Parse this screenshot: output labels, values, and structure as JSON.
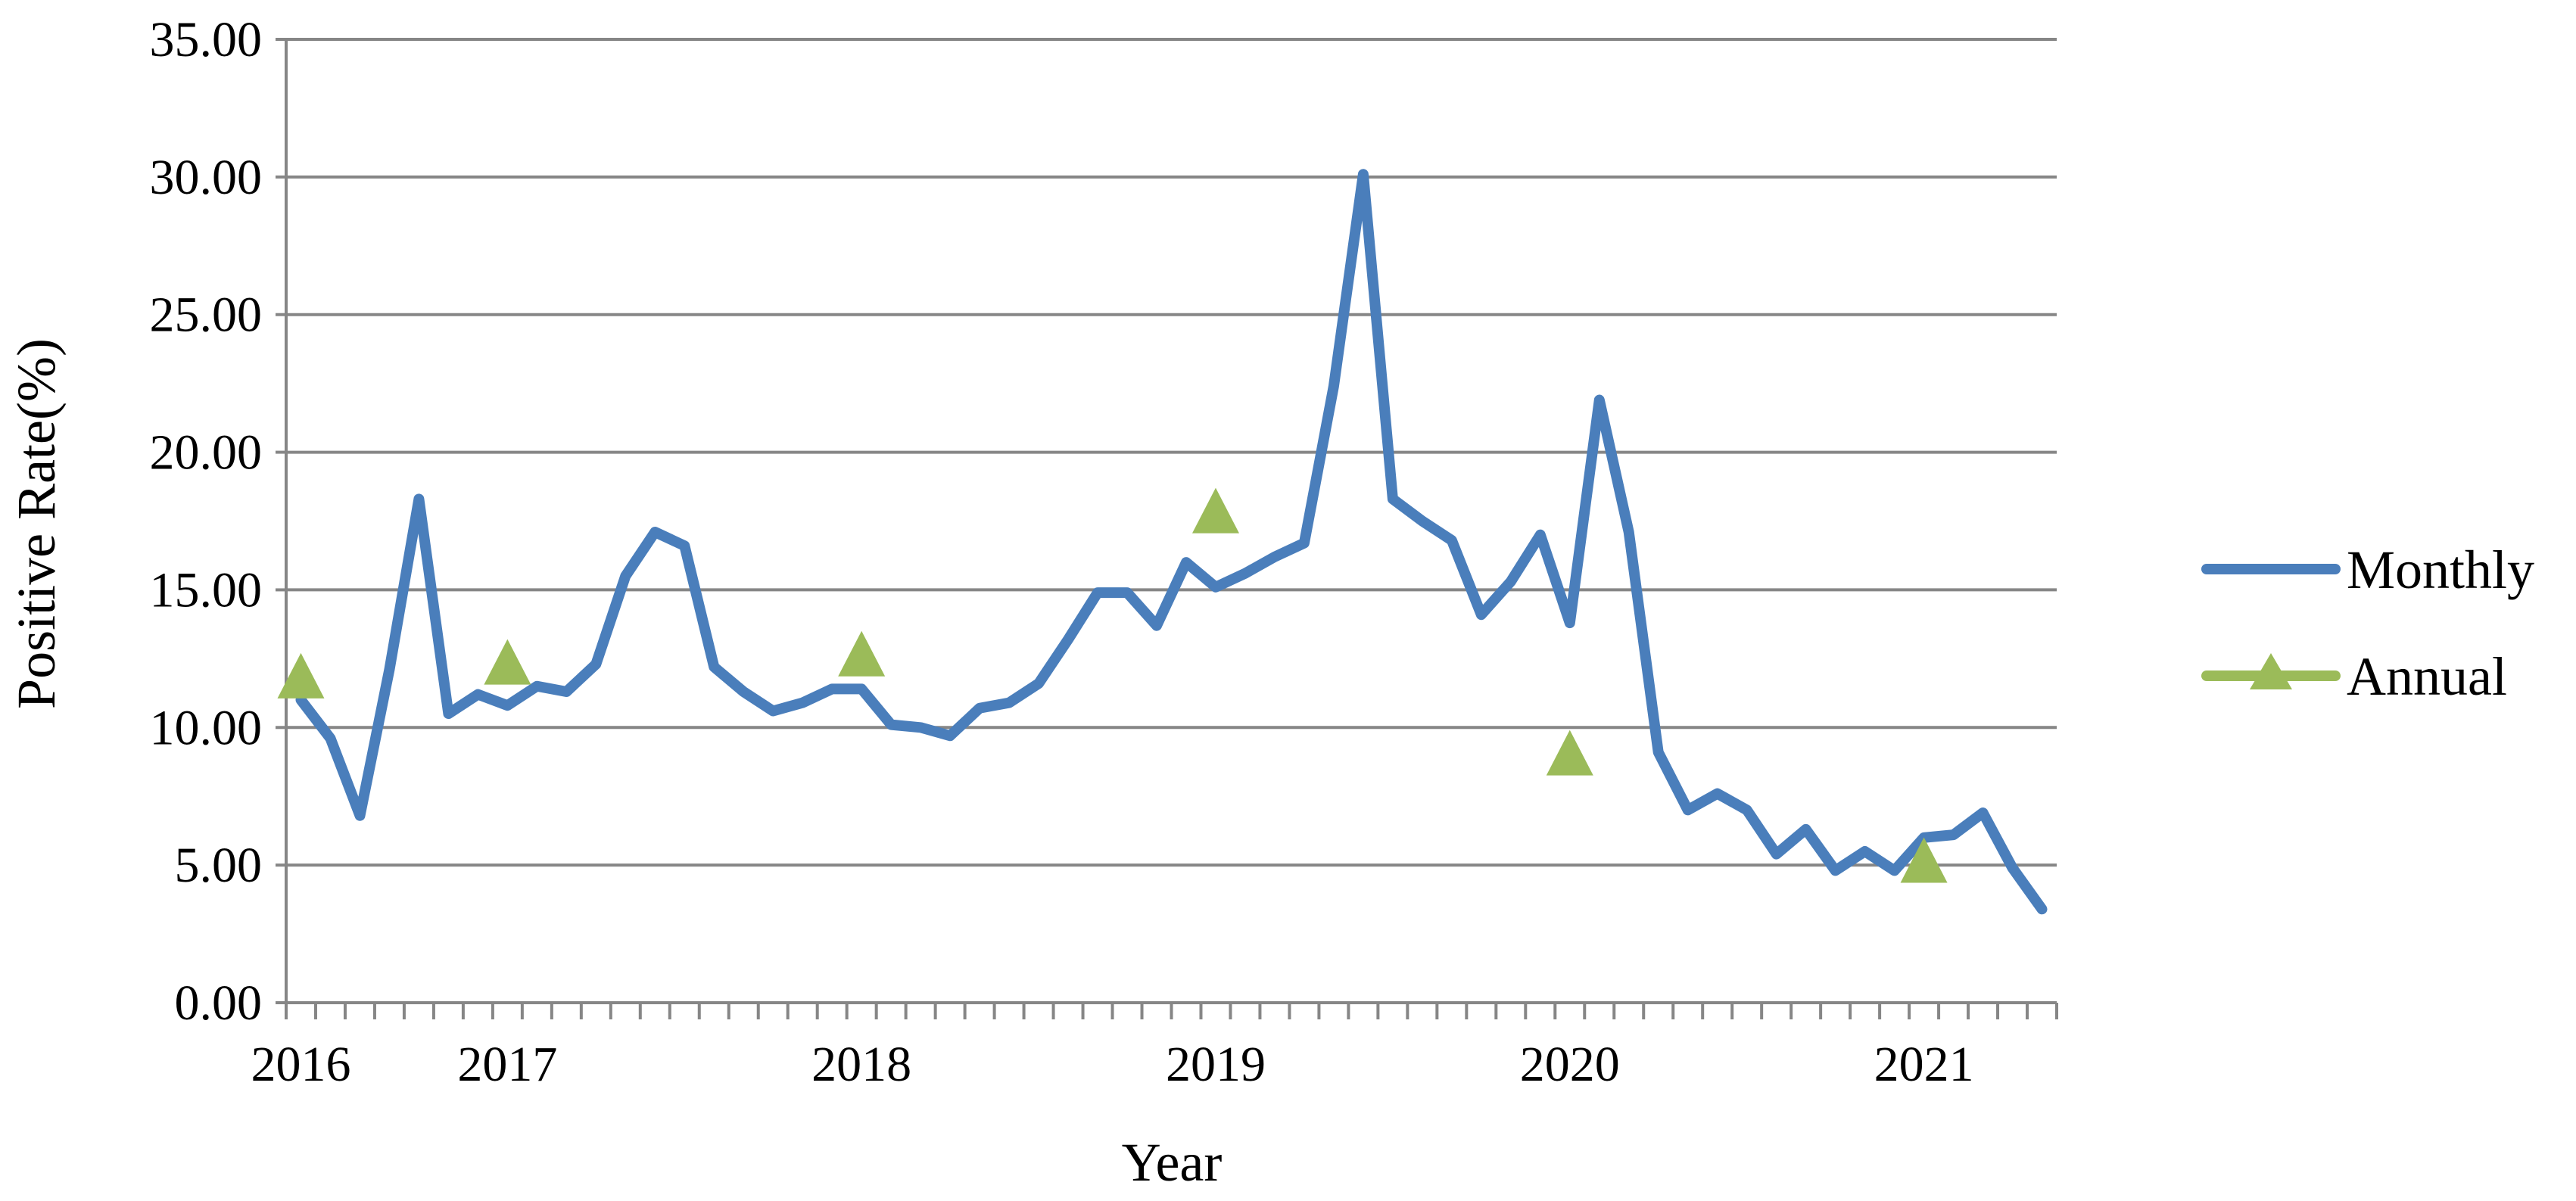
{
  "chart_data": {
    "type": "line",
    "xlabel": "Year",
    "ylabel": "Positive Rate(%)",
    "ylim": [
      0,
      35
    ],
    "y_ticks": [
      "0.00",
      "5.00",
      "10.00",
      "15.00",
      "20.00",
      "25.00",
      "30.00",
      "35.00"
    ],
    "x_tick_labels": [
      {
        "label": "2016",
        "month_index": 0
      },
      {
        "label": "2017",
        "month_index": 7
      },
      {
        "label": "2018",
        "month_index": 19
      },
      {
        "label": "2019",
        "month_index": 31
      },
      {
        "label": "2020",
        "month_index": 43
      },
      {
        "label": "2021",
        "month_index": 55
      }
    ],
    "grid": "horizontal",
    "legend_position": "right",
    "colors": {
      "monthly": "#4a7ebb",
      "annual": "#9bbb59",
      "grid": "#868686",
      "axis": "#868686"
    },
    "series": [
      {
        "name": "Monthly",
        "marker": "none",
        "values": [
          11.0,
          9.6,
          6.8,
          12.1,
          18.3,
          10.5,
          11.2,
          10.8,
          11.5,
          11.3,
          12.3,
          15.5,
          17.1,
          16.6,
          12.2,
          11.3,
          10.6,
          10.9,
          11.4,
          11.4,
          10.1,
          10.0,
          9.7,
          10.7,
          10.9,
          11.6,
          13.2,
          14.9,
          14.9,
          13.7,
          16.0,
          15.1,
          15.6,
          16.2,
          16.7,
          22.4,
          30.1,
          18.3,
          17.5,
          16.8,
          14.1,
          15.3,
          17.0,
          13.8,
          21.9,
          17.1,
          9.1,
          7.0,
          7.6,
          7.0,
          5.4,
          6.3,
          4.8,
          5.5,
          4.8,
          6.0,
          6.1,
          6.9,
          4.9,
          3.4
        ]
      },
      {
        "name": "Annual",
        "marker": "triangle",
        "points": [
          {
            "x": 0,
            "y": 11.8
          },
          {
            "x": 7,
            "y": 12.3
          },
          {
            "x": 19,
            "y": 12.6
          },
          {
            "x": 31,
            "y": 17.8
          },
          {
            "x": 43,
            "y": 9.0
          },
          {
            "x": 55,
            "y": 5.1
          }
        ]
      }
    ]
  }
}
